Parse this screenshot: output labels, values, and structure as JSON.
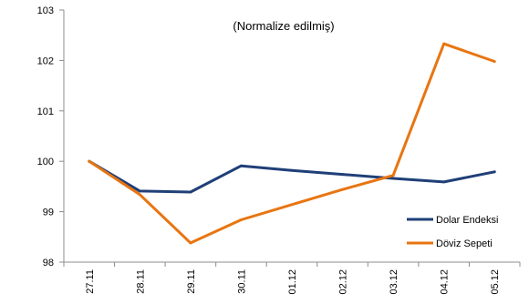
{
  "chart_data": {
    "type": "line",
    "title": "",
    "subtitle": "(Normalize edilmiş)",
    "xlabel": "",
    "ylabel": "",
    "categories": [
      "27.11",
      "28.11",
      "29.11",
      "30.11",
      "01.12",
      "02.12",
      "03.12",
      "04.12",
      "05.12"
    ],
    "ylim": [
      98,
      103
    ],
    "yticks": [
      98,
      99,
      100,
      101,
      102,
      103
    ],
    "grid": false,
    "legend_position": "bottom-right",
    "series": [
      {
        "name": "Dolar Endeksi",
        "color": "#1F3F77",
        "values": [
          100.0,
          99.41,
          99.39,
          99.91,
          99.82,
          99.74,
          99.66,
          99.59,
          99.79
        ]
      },
      {
        "name": "Döviz Sepeti",
        "color": "#E87511",
        "values": [
          100.0,
          99.34,
          98.38,
          98.84,
          99.14,
          99.44,
          99.72,
          102.33,
          101.98
        ]
      }
    ]
  }
}
